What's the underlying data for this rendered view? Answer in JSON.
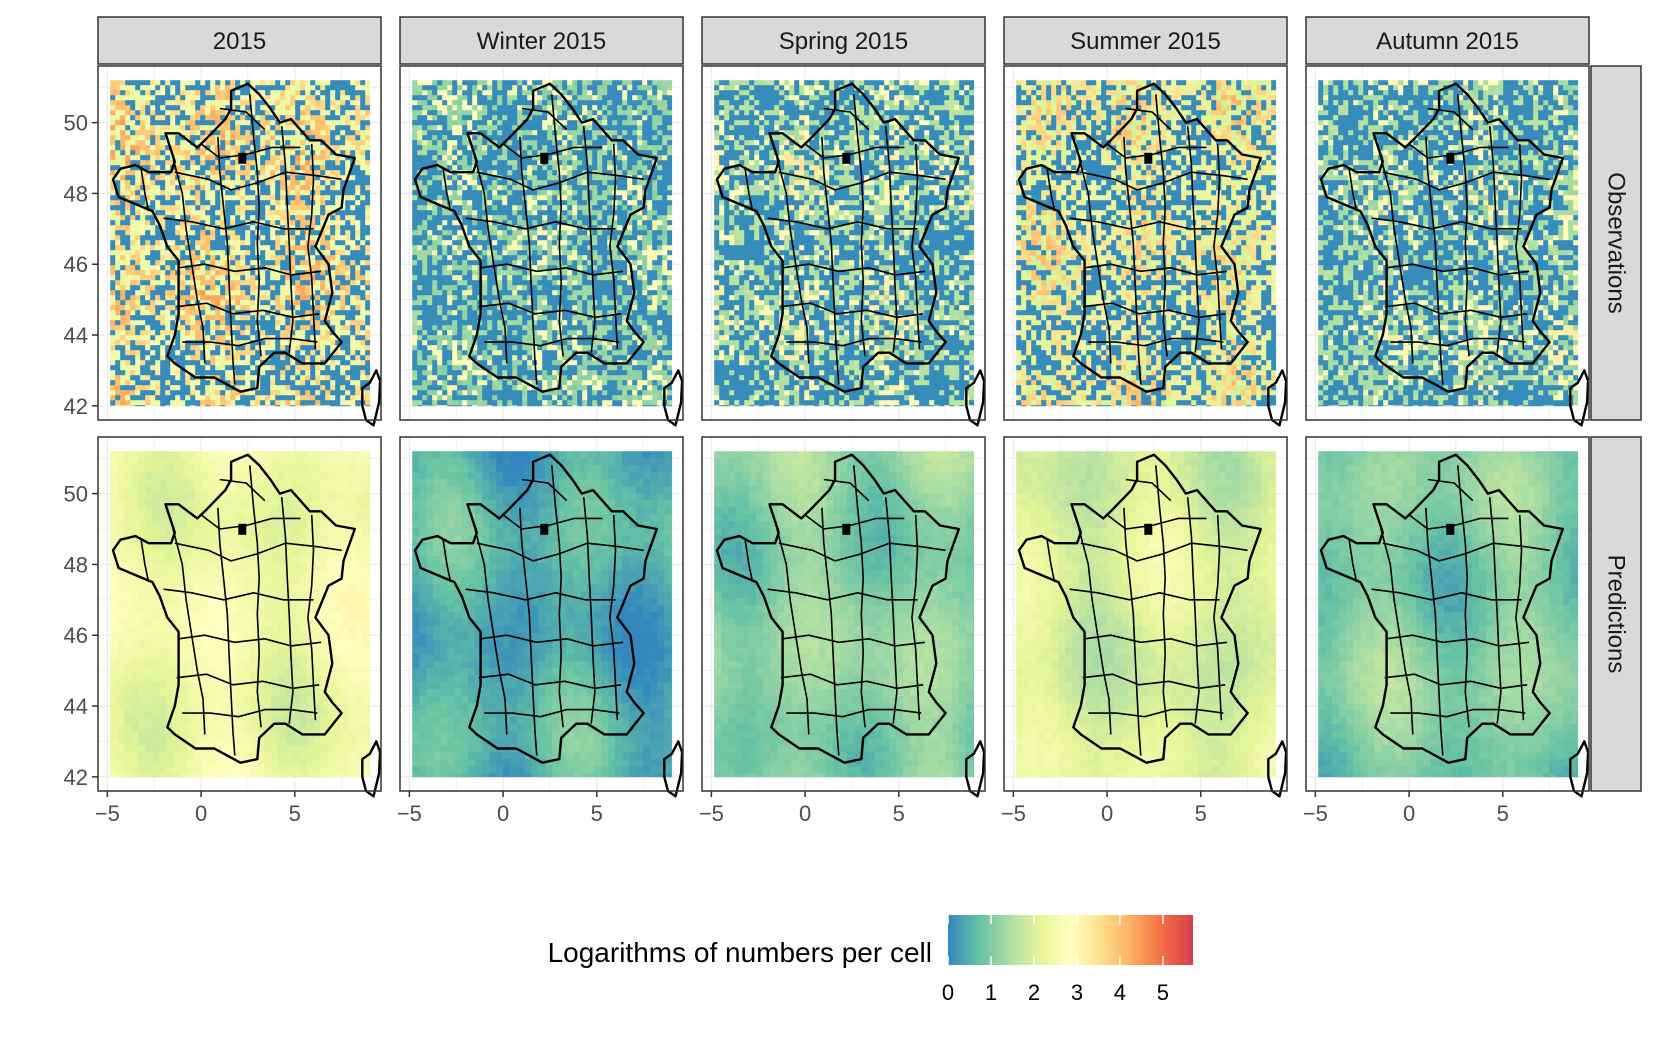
{
  "figure": {
    "columns": [
      "2015",
      "Winter 2015",
      "Spring 2015",
      "Summer 2015",
      "Autumn 2015"
    ],
    "rows": [
      "Observations",
      "Predictions"
    ],
    "x_ticks": [
      -5,
      0,
      5
    ],
    "x_tick_labels": [
      "−5",
      "0",
      "5"
    ],
    "y_ticks": [
      42,
      44,
      46,
      48,
      50
    ],
    "y_tick_labels": [
      "42",
      "44",
      "46",
      "48",
      "50"
    ],
    "xlim": [
      -5.5,
      9.6
    ],
    "ylim": [
      41.6,
      51.6
    ],
    "raster_extent": {
      "lon": [
        -4.85,
        9.0
      ],
      "lat": [
        42.0,
        51.2
      ]
    }
  },
  "legend": {
    "title": "Logarithms of numbers per cell",
    "range": [
      0,
      5.7
    ],
    "ticks": [
      0,
      1,
      2,
      3,
      4,
      5
    ],
    "tick_labels": [
      "0",
      "1",
      "2",
      "3",
      "4",
      "5"
    ],
    "colors": [
      "#3288bd",
      "#66c2a5",
      "#abdda4",
      "#e6f598",
      "#ffffbf",
      "#fee08b",
      "#fdae61",
      "#f46d43",
      "#d53e4f"
    ]
  },
  "panels": [
    {
      "row": "Observations",
      "column": "2015",
      "pattern": "speckled",
      "mean_level": 1.6
    },
    {
      "row": "Observations",
      "column": "Winter 2015",
      "pattern": "speckled",
      "mean_level": 0.3
    },
    {
      "row": "Observations",
      "column": "Spring 2015",
      "pattern": "speckled",
      "mean_level": 0.6
    },
    {
      "row": "Observations",
      "column": "Summer 2015",
      "pattern": "speckled",
      "mean_level": 1.3
    },
    {
      "row": "Observations",
      "column": "Autumn 2015",
      "pattern": "speckled",
      "mean_level": 0.5
    },
    {
      "row": "Predictions",
      "column": "2015",
      "pattern": "smooth",
      "mean_level": 2.4
    },
    {
      "row": "Predictions",
      "column": "Winter 2015",
      "pattern": "smooth",
      "mean_level": 0.5
    },
    {
      "row": "Predictions",
      "column": "Spring 2015",
      "pattern": "smooth",
      "mean_level": 1.1
    },
    {
      "row": "Predictions",
      "column": "Summer 2015",
      "pattern": "smooth",
      "mean_level": 2.0
    },
    {
      "row": "Predictions",
      "column": "Autumn 2015",
      "pattern": "smooth",
      "mean_level": 1.0
    }
  ],
  "map_outline": {
    "france": [
      [
        -4.7,
        48.4
      ],
      [
        -4.3,
        48.7
      ],
      [
        -3.5,
        48.8
      ],
      [
        -2.8,
        48.6
      ],
      [
        -2.0,
        48.6
      ],
      [
        -1.6,
        48.6
      ],
      [
        -1.4,
        48.9
      ],
      [
        -1.9,
        49.7
      ],
      [
        -1.2,
        49.7
      ],
      [
        -0.2,
        49.3
      ],
      [
        0.2,
        49.5
      ],
      [
        1.3,
        50.1
      ],
      [
        1.6,
        50.4
      ],
      [
        1.6,
        50.9
      ],
      [
        2.5,
        51.1
      ],
      [
        3.1,
        50.8
      ],
      [
        3.7,
        50.4
      ],
      [
        4.2,
        50.0
      ],
      [
        4.8,
        50.1
      ],
      [
        5.8,
        49.5
      ],
      [
        6.4,
        49.5
      ],
      [
        7.2,
        49.1
      ],
      [
        8.2,
        49.0
      ],
      [
        7.6,
        48.1
      ],
      [
        7.5,
        47.6
      ],
      [
        6.8,
        47.4
      ],
      [
        6.1,
        46.5
      ],
      [
        6.8,
        46.0
      ],
      [
        7.0,
        45.2
      ],
      [
        6.6,
        44.4
      ],
      [
        7.0,
        44.1
      ],
      [
        7.5,
        43.8
      ],
      [
        6.6,
        43.2
      ],
      [
        5.4,
        43.2
      ],
      [
        4.5,
        43.5
      ],
      [
        3.9,
        43.5
      ],
      [
        3.1,
        43.1
      ],
      [
        3.0,
        42.5
      ],
      [
        2.1,
        42.4
      ],
      [
        1.4,
        42.6
      ],
      [
        0.7,
        42.8
      ],
      [
        -0.3,
        42.8
      ],
      [
        -1.4,
        43.2
      ],
      [
        -1.8,
        43.4
      ],
      [
        -1.4,
        44.0
      ],
      [
        -1.2,
        44.6
      ],
      [
        -1.2,
        45.5
      ],
      [
        -1.2,
        46.1
      ],
      [
        -1.8,
        46.5
      ],
      [
        -2.2,
        47.1
      ],
      [
        -2.6,
        47.5
      ],
      [
        -3.5,
        47.7
      ],
      [
        -4.4,
        47.9
      ],
      [
        -4.7,
        48.4
      ]
    ],
    "corsica": [
      [
        9.35,
        43.0
      ],
      [
        9.55,
        42.7
      ],
      [
        9.5,
        42.1
      ],
      [
        9.2,
        41.45
      ],
      [
        8.8,
        41.6
      ],
      [
        8.6,
        42.0
      ],
      [
        8.6,
        42.5
      ],
      [
        9.0,
        42.65
      ],
      [
        9.35,
        43.0
      ]
    ]
  }
}
